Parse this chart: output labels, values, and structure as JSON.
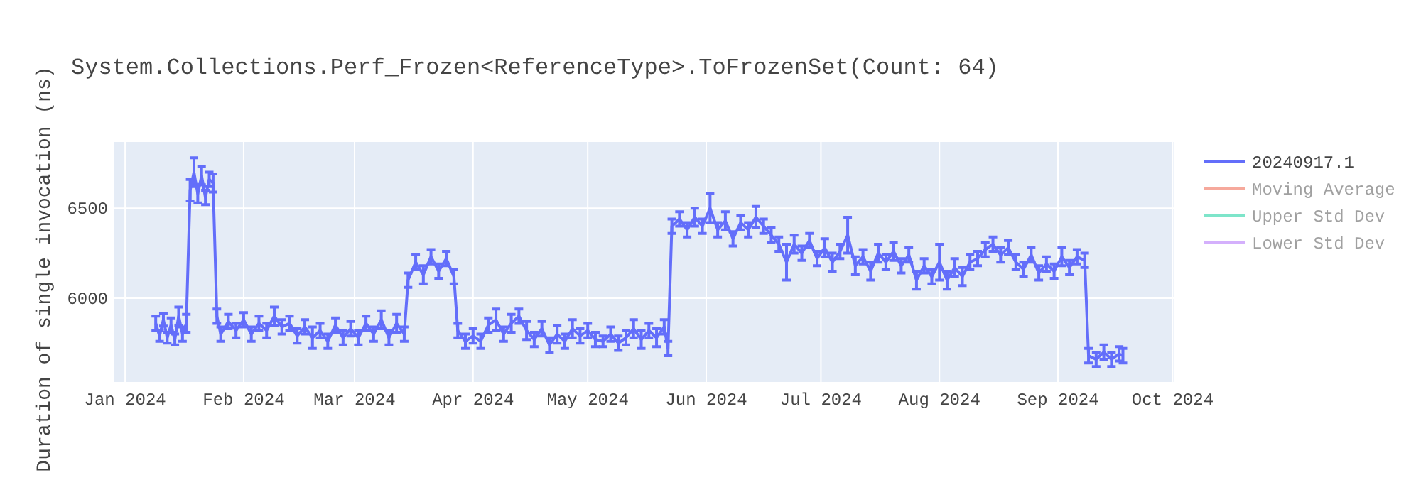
{
  "chart_data": {
    "type": "line",
    "title": "System.Collections.Perf_Frozen<ReferenceType>.ToFrozenSet(Count: 64)",
    "ylabel": "Duration of single invocation (ns)",
    "x": [
      "2024-01-09",
      "2024-01-10",
      "2024-01-11",
      "2024-01-12",
      "2024-01-13",
      "2024-01-14",
      "2024-01-15",
      "2024-01-16",
      "2024-01-17",
      "2024-01-18",
      "2024-01-19",
      "2024-01-20",
      "2024-01-21",
      "2024-01-22",
      "2024-01-23",
      "2024-01-24",
      "2024-01-25",
      "2024-01-26",
      "2024-01-28",
      "2024-01-30",
      "2024-02-01",
      "2024-02-03",
      "2024-02-05",
      "2024-02-07",
      "2024-02-09",
      "2024-02-11",
      "2024-02-13",
      "2024-02-15",
      "2024-02-17",
      "2024-02-19",
      "2024-02-21",
      "2024-02-23",
      "2024-02-25",
      "2024-02-27",
      "2024-02-29",
      "2024-03-02",
      "2024-03-04",
      "2024-03-06",
      "2024-03-08",
      "2024-03-10",
      "2024-03-12",
      "2024-03-14",
      "2024-03-15",
      "2024-03-17",
      "2024-03-19",
      "2024-03-21",
      "2024-03-23",
      "2024-03-25",
      "2024-03-27",
      "2024-03-28",
      "2024-03-30",
      "2024-04-01",
      "2024-04-03",
      "2024-04-05",
      "2024-04-07",
      "2024-04-09",
      "2024-04-11",
      "2024-04-13",
      "2024-04-15",
      "2024-04-17",
      "2024-04-19",
      "2024-04-21",
      "2024-04-23",
      "2024-04-25",
      "2024-04-27",
      "2024-04-29",
      "2024-05-01",
      "2024-05-03",
      "2024-05-05",
      "2024-05-07",
      "2024-05-09",
      "2024-05-11",
      "2024-05-13",
      "2024-05-15",
      "2024-05-17",
      "2024-05-19",
      "2024-05-21",
      "2024-05-22",
      "2024-05-23",
      "2024-05-25",
      "2024-05-27",
      "2024-05-29",
      "2024-05-31",
      "2024-06-02",
      "2024-06-04",
      "2024-06-06",
      "2024-06-08",
      "2024-06-10",
      "2024-06-12",
      "2024-06-14",
      "2024-06-16",
      "2024-06-18",
      "2024-06-20",
      "2024-06-22",
      "2024-06-24",
      "2024-06-26",
      "2024-06-28",
      "2024-06-30",
      "2024-07-02",
      "2024-07-04",
      "2024-07-06",
      "2024-07-08",
      "2024-07-10",
      "2024-07-12",
      "2024-07-14",
      "2024-07-16",
      "2024-07-18",
      "2024-07-20",
      "2024-07-22",
      "2024-07-24",
      "2024-07-26",
      "2024-07-28",
      "2024-07-30",
      "2024-08-01",
      "2024-08-03",
      "2024-08-05",
      "2024-08-07",
      "2024-08-09",
      "2024-08-11",
      "2024-08-13",
      "2024-08-15",
      "2024-08-17",
      "2024-08-19",
      "2024-08-21",
      "2024-08-23",
      "2024-08-25",
      "2024-08-27",
      "2024-08-29",
      "2024-08-31",
      "2024-09-02",
      "2024-09-04",
      "2024-09-06",
      "2024-09-08",
      "2024-09-09",
      "2024-09-11",
      "2024-09-13",
      "2024-09-15",
      "2024-09-17",
      "2024-09-18"
    ],
    "series": [
      {
        "name": "20240917.1",
        "color": "#636efa",
        "values": [
          5860,
          5790,
          5880,
          5780,
          5850,
          5770,
          5900,
          5800,
          5860,
          6600,
          6700,
          6580,
          6680,
          6560,
          6660,
          6640,
          5900,
          5800,
          5870,
          5820,
          5880,
          5800,
          5860,
          5820,
          5900,
          5840,
          5860,
          5790,
          5840,
          5780,
          5820,
          5760,
          5850,
          5780,
          5830,
          5780,
          5860,
          5800,
          5880,
          5780,
          5860,
          5800,
          6100,
          6200,
          6130,
          6230,
          6150,
          6220,
          6120,
          5820,
          5760,
          5790,
          5760,
          5850,
          5880,
          5800,
          5860,
          5900,
          5820,
          5770,
          5830,
          5740,
          5800,
          5760,
          5830,
          5790,
          5820,
          5770,
          5760,
          5800,
          5750,
          5780,
          5830,
          5770,
          5820,
          5780,
          5840,
          5720,
          6400,
          6440,
          6380,
          6450,
          6400,
          6500,
          6380,
          6430,
          6330,
          6420,
          6380,
          6450,
          6400,
          6350,
          6300,
          6200,
          6300,
          6250,
          6320,
          6220,
          6280,
          6200,
          6260,
          6350,
          6180,
          6230,
          6150,
          6250,
          6200,
          6260,
          6180,
          6240,
          6100,
          6180,
          6120,
          6200,
          6100,
          6170,
          6120,
          6200,
          6220,
          6270,
          6300,
          6240,
          6280,
          6200,
          6160,
          6240,
          6140,
          6190,
          6150,
          6230,
          6170,
          6230,
          6210,
          5680,
          5660,
          5700,
          5660,
          5690,
          5680
        ],
        "errors": [
          40,
          30,
          35,
          30,
          40,
          30,
          50,
          40,
          50,
          60,
          80,
          50,
          50,
          40,
          40,
          50,
          40,
          40,
          40,
          40,
          40,
          40,
          40,
          40,
          50,
          40,
          40,
          40,
          40,
          60,
          40,
          40,
          40,
          40,
          40,
          40,
          40,
          40,
          50,
          40,
          50,
          40,
          40,
          40,
          50,
          40,
          40,
          40,
          40,
          40,
          40,
          40,
          40,
          40,
          60,
          40,
          50,
          40,
          50,
          40,
          40,
          40,
          50,
          40,
          50,
          40,
          40,
          40,
          30,
          40,
          40,
          40,
          50,
          50,
          40,
          50,
          40,
          40,
          40,
          40,
          40,
          50,
          40,
          80,
          40,
          50,
          40,
          40,
          40,
          60,
          40,
          40,
          40,
          100,
          50,
          40,
          40,
          40,
          50,
          50,
          40,
          100,
          50,
          40,
          50,
          50,
          40,
          50,
          40,
          40,
          50,
          40,
          40,
          100,
          50,
          50,
          50,
          40,
          40,
          40,
          40,
          40,
          40,
          40,
          40,
          40,
          40,
          40,
          40,
          50,
          40,
          40,
          40,
          40,
          40,
          40,
          40,
          40,
          40
        ]
      },
      {
        "name": "Moving Average",
        "color": "#ef553b",
        "values": [
          null,
          null,
          null,
          null,
          null,
          null,
          null,
          null,
          null,
          null,
          null,
          null,
          null,
          null,
          null,
          null,
          null,
          null,
          null,
          null,
          null,
          null,
          null,
          null,
          null,
          null,
          null,
          null,
          null,
          null,
          null,
          null,
          null,
          null,
          null,
          null,
          null,
          null,
          null,
          null,
          null,
          null,
          null,
          null,
          null,
          null,
          null,
          null,
          null,
          null,
          null,
          null,
          null,
          null,
          null,
          null,
          null,
          null,
          null,
          null,
          null,
          null,
          null,
          null,
          null,
          null,
          null,
          null,
          null,
          null,
          null,
          null,
          null,
          null,
          null,
          null,
          null,
          null,
          null,
          null,
          null,
          null,
          null,
          null,
          null,
          null,
          null,
          null,
          null,
          null,
          null,
          null,
          null,
          null,
          null,
          null,
          null,
          null,
          null,
          null,
          null,
          null,
          null,
          null,
          null,
          null,
          null,
          null,
          null,
          null,
          null,
          null,
          null,
          null,
          null,
          null,
          null,
          null,
          null,
          null,
          null,
          null,
          null,
          null,
          null,
          null,
          null,
          null,
          null,
          null,
          null,
          null,
          null,
          null,
          null,
          null,
          null,
          null,
          null
        ]
      },
      {
        "name": "Upper Std Dev",
        "color": "#00cc96",
        "values": [
          null,
          null,
          null,
          null,
          null,
          null,
          null,
          null,
          null,
          null,
          null,
          null,
          null,
          null,
          null,
          null,
          null,
          null,
          null,
          null,
          null,
          null,
          null,
          null,
          null,
          null,
          null,
          null,
          null,
          null,
          null,
          null,
          null,
          null,
          null,
          null,
          null,
          null,
          null,
          null,
          null,
          null,
          null,
          null,
          null,
          null,
          null,
          null,
          null,
          null,
          null,
          null,
          null,
          null,
          null,
          null,
          null,
          null,
          null,
          null,
          null,
          null,
          null,
          null,
          null,
          null,
          null,
          null,
          null,
          null,
          null,
          null,
          null,
          null,
          null,
          null,
          null,
          null,
          null,
          null,
          null,
          null,
          null,
          null,
          null,
          null,
          null,
          null,
          null,
          null,
          null,
          null,
          null,
          null,
          null,
          null,
          null,
          null,
          null,
          null,
          null,
          null,
          null,
          null,
          null,
          null,
          null,
          null,
          null,
          null,
          null,
          null,
          null,
          null,
          null,
          null,
          null,
          null,
          null,
          null,
          null,
          null,
          null,
          null,
          null,
          null,
          null,
          null,
          null,
          null,
          null,
          null,
          null,
          null,
          null,
          null,
          null,
          null,
          null
        ]
      },
      {
        "name": "Lower Std Dev",
        "color": "#ab63fa",
        "values": [
          null,
          null,
          null,
          null,
          null,
          null,
          null,
          null,
          null,
          null,
          null,
          null,
          null,
          null,
          null,
          null,
          null,
          null,
          null,
          null,
          null,
          null,
          null,
          null,
          null,
          null,
          null,
          null,
          null,
          null,
          null,
          null,
          null,
          null,
          null,
          null,
          null,
          null,
          null,
          null,
          null,
          null,
          null,
          null,
          null,
          null,
          null,
          null,
          null,
          null,
          null,
          null,
          null,
          null,
          null,
          null,
          null,
          null,
          null,
          null,
          null,
          null,
          null,
          null,
          null,
          null,
          null,
          null,
          null,
          null,
          null,
          null,
          null,
          null,
          null,
          null,
          null,
          null,
          null,
          null,
          null,
          null,
          null,
          null,
          null,
          null,
          null,
          null,
          null,
          null,
          null,
          null,
          null,
          null,
          null,
          null,
          null,
          null,
          null,
          null,
          null,
          null,
          null,
          null,
          null,
          null,
          null,
          null,
          null,
          null,
          null,
          null,
          null,
          null,
          null,
          null,
          null,
          null,
          null,
          null,
          null,
          null,
          null,
          null,
          null,
          null,
          null,
          null,
          null,
          null,
          null,
          null,
          null,
          null,
          null,
          null,
          null,
          null,
          null
        ]
      }
    ],
    "xlim": [
      "2023-12-29",
      "2024-10-01T07:00"
    ],
    "xticks": [
      {
        "value": "2024-01-01",
        "label": "Jan 2024"
      },
      {
        "value": "2024-02-01",
        "label": "Feb 2024"
      },
      {
        "value": "2024-03-01",
        "label": "Mar 2024"
      },
      {
        "value": "2024-04-01",
        "label": "Apr 2024"
      },
      {
        "value": "2024-05-01",
        "label": "May 2024"
      },
      {
        "value": "2024-06-01",
        "label": "Jun 2024"
      },
      {
        "value": "2024-07-01",
        "label": "Jul 2024"
      },
      {
        "value": "2024-08-01",
        "label": "Aug 2024"
      },
      {
        "value": "2024-09-01",
        "label": "Sep 2024"
      },
      {
        "value": "2024-10-01",
        "label": "Oct 2024"
      }
    ],
    "ylim": [
      5534,
      6868
    ],
    "yticks": [
      6000,
      6500
    ],
    "grid": true,
    "legend": "top right",
    "marker": "none",
    "line_style": "solid"
  }
}
